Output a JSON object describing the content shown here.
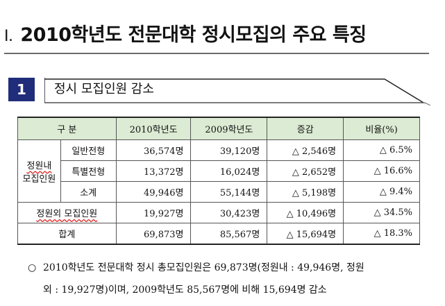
{
  "title": {
    "numeral": "Ⅰ.",
    "text": "2010학년도 전문대학 정시모집의 주요 특징"
  },
  "section": {
    "number": "1",
    "label": "정시 모집인원 감소"
  },
  "table": {
    "headers": [
      "구  분",
      "2010학년도",
      "2009학년도",
      "증감",
      "비율(%)"
    ],
    "group_inner_line1": "정원내",
    "group_inner_line2": "모집인원",
    "rows": [
      {
        "label": "일반전형",
        "y2010": "36,574명",
        "y2009": "39,120명",
        "change": "△ 2,546명",
        "ratio": "△ 6.5%"
      },
      {
        "label": "특별전형",
        "y2010": "13,372명",
        "y2009": "16,024명",
        "change": "△ 2,652명",
        "ratio": "△ 16.6%"
      },
      {
        "label": "소계",
        "y2010": "49,946명",
        "y2009": "55,144명",
        "change": "△ 5,198명",
        "ratio": "△ 9.4%"
      },
      {
        "label": "정원외 모집인원",
        "y2010": "19,927명",
        "y2009": "30,423명",
        "change": "△ 10,496명",
        "ratio": "△ 34.5%"
      },
      {
        "label": "합계",
        "y2010": "69,873명",
        "y2009": "85,567명",
        "change": "△ 15,694명",
        "ratio": "△ 18.3%"
      }
    ]
  },
  "note": {
    "bullet": "○",
    "line1": "2010학년도 전문대학 정시 총모집인원은 69,873명(정원내 : 49,946명, 정원",
    "line2": "외 : 19,927명)이며, 2009학년도 85,567명에 비해 15,694명 감소"
  }
}
